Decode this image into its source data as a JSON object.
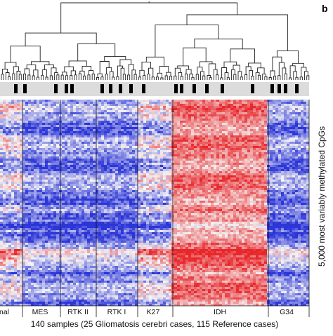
{
  "chart_data": {
    "type": "heatmap",
    "panel_label": "b",
    "xlabel": "140 samples (25 Gliomatosis cerebri cases, 115 Reference cases)",
    "ylabel": "5,000 most variably methylated CpGs",
    "groups": [
      "nal",
      "MES",
      "RTK II",
      "RTK I",
      "K27",
      "IDH",
      "G34"
    ],
    "colors": {
      "low": "#2b35d8",
      "mid": "#f4f4f4",
      "high": "#e8272b",
      "annotation_bar": "#dcdcdc",
      "mark": "#000000"
    }
  }
}
